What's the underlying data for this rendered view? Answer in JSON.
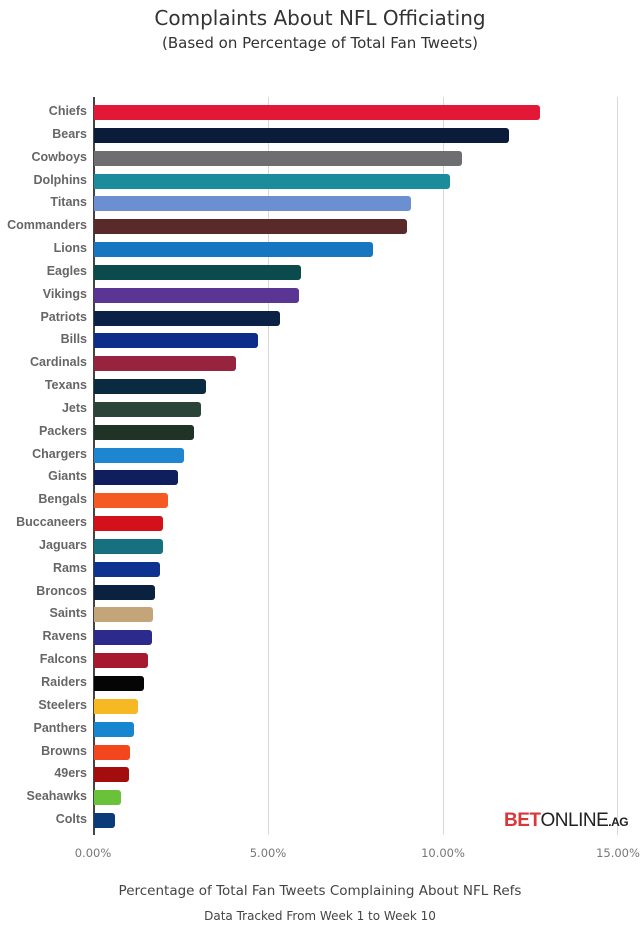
{
  "chart_data": {
    "type": "bar",
    "orientation": "horizontal",
    "title": "Complaints About NFL Officiating",
    "subtitle": "(Based on Percentage of Total Fan Tweets)",
    "xlabel": "Percentage of Total Fan Tweets Complaining About NFL Refs",
    "note": "Data Tracked From Week 1 to Week 10",
    "ylabel": "",
    "xlim": [
      0,
      15
    ],
    "x_ticks": [
      "0.00%",
      "5.00%",
      "10.00%",
      "15.00%"
    ],
    "grid": true,
    "legend": null,
    "categories": [
      "Chiefs",
      "Bears",
      "Cowboys",
      "Dolphins",
      "Titans",
      "Commanders",
      "Lions",
      "Eagles",
      "Vikings",
      "Patriots",
      "Bills",
      "Cardinals",
      "Texans",
      "Jets",
      "Packers",
      "Chargers",
      "Giants",
      "Bengals",
      "Buccaneers",
      "Jaguars",
      "Rams",
      "Broncos",
      "Saints",
      "Ravens",
      "Falcons",
      "Raiders",
      "Steelers",
      "Panthers",
      "Browns",
      "49ers",
      "Seahawks",
      "Colts"
    ],
    "values": [
      12.74,
      11.86,
      10.51,
      10.17,
      9.06,
      8.94,
      7.97,
      5.91,
      5.86,
      5.31,
      4.69,
      4.06,
      3.2,
      3.07,
      2.86,
      2.57,
      2.4,
      2.11,
      1.97,
      1.97,
      1.89,
      1.74,
      1.69,
      1.66,
      1.54,
      1.43,
      1.26,
      1.14,
      1.03,
      1.0,
      0.77,
      0.6
    ],
    "colors": [
      "#e31837",
      "#0b1c3a",
      "#6e6e70",
      "#1a8c9b",
      "#6b8fd0",
      "#5a2a2a",
      "#1677c0",
      "#0b4a4d",
      "#5b3593",
      "#0b2145",
      "#0d2d8a",
      "#97233f",
      "#0a2a42",
      "#2a4437",
      "#1f3327",
      "#1e86d0",
      "#0f1f5e",
      "#f55a22",
      "#d4111a",
      "#157180",
      "#0d3290",
      "#0a223f",
      "#c4a57a",
      "#2d2a8e",
      "#a6192e",
      "#050505",
      "#f6b823",
      "#1686d0",
      "#f3461c",
      "#a30d0d",
      "#6ac23a",
      "#0b3b78"
    ]
  },
  "logo": {
    "bet": "BET",
    "online": "ONLINE",
    "ag": ".AG"
  }
}
